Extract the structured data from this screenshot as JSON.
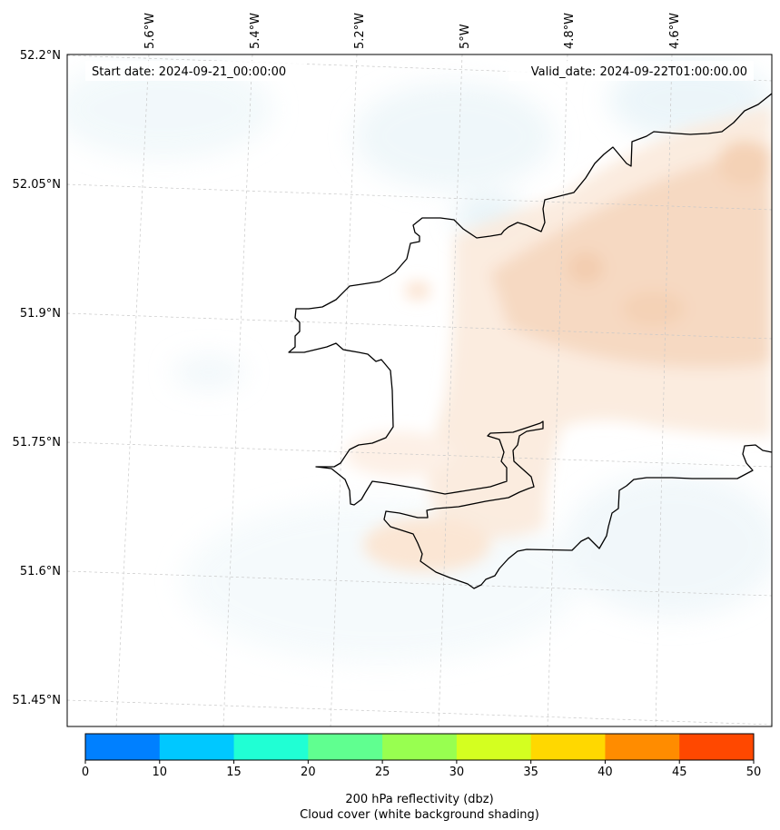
{
  "map": {
    "start_label": "Start date: 2024-09-21_00:00:00",
    "valid_label": "Valid_date: 2024-09-22T01:00:00.00",
    "lon_ticks": [
      "5.6°W",
      "5.4°W",
      "5.2°W",
      "5°W",
      "4.8°W",
      "4.6°W"
    ],
    "lat_ticks": [
      "52.2°N",
      "52.05°N",
      "51.9°N",
      "51.75°N",
      "51.6°N",
      "51.45°N"
    ],
    "colors": {
      "coastline": "#000000",
      "gridline": "#c8c8c8",
      "low_reflectivity": "#fbeadc",
      "mid_reflectivity": "#f6d6bd",
      "cloud_tint": "#e3f1f6"
    }
  },
  "colorbar": {
    "bounds": [
      0,
      10,
      15,
      20,
      25,
      30,
      35,
      40,
      45,
      50
    ],
    "colors": [
      "#0080ff",
      "#00c8ff",
      "#20ffd4",
      "#60ff90",
      "#98ff50",
      "#d4ff20",
      "#ffd800",
      "#ff8c00",
      "#ff4800"
    ],
    "tick_labels": [
      "0",
      "10",
      "15",
      "20",
      "25",
      "30",
      "35",
      "40",
      "45",
      "50"
    ],
    "label_line1": "200 hPa reflectivity (dbz)",
    "label_line2": "Cloud cover (white background shading)"
  }
}
